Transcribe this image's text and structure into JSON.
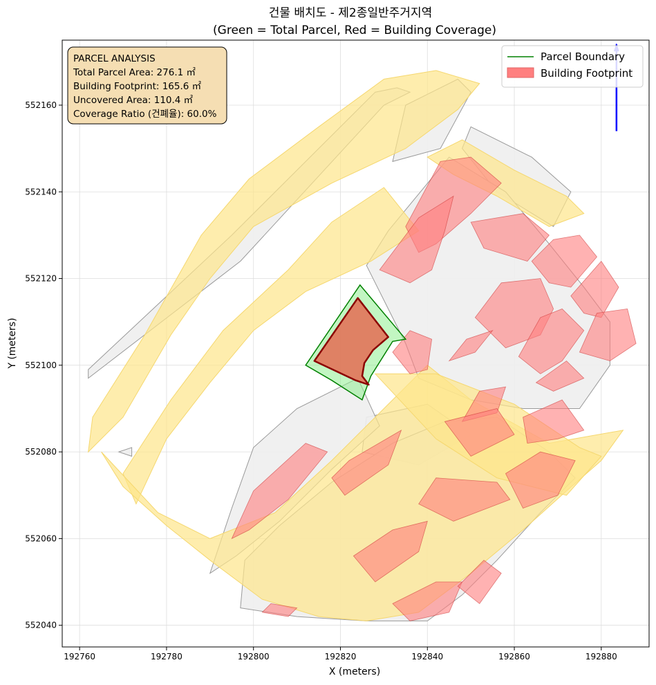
{
  "figure": {
    "title_line1": "건물 배치도 - 제2종일반주거지역",
    "title_line2": "(Green = Total Parcel, Red = Building Coverage)"
  },
  "chart_data": {
    "type": "map",
    "xlabel": "X (meters)",
    "ylabel": "Y (meters)",
    "xlim": [
      192756,
      192891
    ],
    "ylim": [
      552035,
      552175
    ],
    "grid": true,
    "legend_position": "top-right",
    "x_ticks": [
      192760,
      192780,
      192800,
      192820,
      192840,
      192860,
      192880
    ],
    "y_ticks": [
      552040,
      552060,
      552080,
      552100,
      552120,
      552140,
      552160
    ],
    "legend": [
      {
        "label": "Parcel Boundary",
        "kind": "line",
        "color": "#008000"
      },
      {
        "label": "Building Footprint",
        "kind": "patch",
        "color": "#ff7f7f"
      }
    ],
    "info_box": {
      "lines": [
        "PARCEL ANALYSIS",
        "Total Parcel Area: 276.1 ㎡",
        "Building Footprint: 165.6 ㎡",
        "Uncovered Area: 110.4 ㎡",
        "Coverage Ratio (건폐율): 60.0%"
      ]
    },
    "target_parcel": [
      [
        192812.0,
        552100.0
      ],
      [
        192824.5,
        552118.5
      ],
      [
        192835.0,
        552106.0
      ],
      [
        192832.0,
        552105.5
      ],
      [
        192827.0,
        552097.5
      ],
      [
        192825.0,
        552092.0
      ],
      [
        192818.0,
        552096.5
      ]
    ],
    "target_building": [
      [
        192814.0,
        552101.0
      ],
      [
        192824.0,
        552115.5
      ],
      [
        192831.0,
        552106.5
      ],
      [
        192827.5,
        552103.5
      ],
      [
        192825.5,
        552100.5
      ],
      [
        192825.0,
        552097.5
      ],
      [
        192826.5,
        552095.5
      ],
      [
        192823.5,
        552096.5
      ]
    ],
    "roads": [
      [
        [
          192763,
          552088
        ],
        [
          192775,
          552107
        ],
        [
          192788,
          552130
        ],
        [
          192799,
          552143
        ],
        [
          192815,
          552155
        ],
        [
          192830,
          552166
        ],
        [
          192842,
          552168
        ],
        [
          192852,
          552165
        ],
        [
          192847,
          552159
        ],
        [
          192835,
          552150
        ],
        [
          192818,
          552142
        ],
        [
          192800,
          552132
        ],
        [
          192790,
          552120
        ],
        [
          192781,
          552107
        ],
        [
          192770,
          552088
        ],
        [
          192762,
          552080
        ]
      ],
      [
        [
          192773,
          552068
        ],
        [
          192780,
          552083
        ],
        [
          192790,
          552096
        ],
        [
          192800,
          552108
        ],
        [
          192812,
          552117
        ],
        [
          192827,
          552124
        ],
        [
          192838,
          552131
        ],
        [
          192830,
          552141
        ],
        [
          192818,
          552133
        ],
        [
          192808,
          552122
        ],
        [
          192793,
          552108
        ],
        [
          192781,
          552092
        ],
        [
          192770,
          552075
        ]
      ],
      [
        [
          192765,
          552080
        ],
        [
          192770,
          552072
        ],
        [
          192780,
          552063
        ],
        [
          192790,
          552055
        ],
        [
          192802,
          552046
        ],
        [
          192815,
          552042
        ],
        [
          192826,
          552041
        ],
        [
          192838,
          552043
        ],
        [
          192850,
          552052
        ],
        [
          192862,
          552062
        ],
        [
          192872,
          552071
        ],
        [
          192880,
          552078
        ],
        [
          192885,
          552085
        ],
        [
          192868,
          552082
        ],
        [
          192850,
          552092
        ],
        [
          192840,
          552100
        ],
        [
          192830,
          552090
        ],
        [
          192818,
          552078
        ],
        [
          192805,
          552066
        ],
        [
          192790,
          552060
        ],
        [
          192778,
          552066
        ]
      ],
      [
        [
          192828,
          552098
        ],
        [
          192842,
          552098
        ],
        [
          192860,
          552091
        ],
        [
          192875,
          552081
        ],
        [
          192880,
          552079
        ],
        [
          192872,
          552070
        ],
        [
          192856,
          552074
        ],
        [
          192842,
          552083
        ]
      ],
      [
        [
          192840,
          552148
        ],
        [
          192848,
          552152
        ],
        [
          192860,
          552145
        ],
        [
          192872,
          552139
        ],
        [
          192876,
          552135
        ],
        [
          192868,
          552132
        ],
        [
          192856,
          552139
        ],
        [
          192846,
          552144
        ]
      ]
    ],
    "parcels": [
      [
        [
          192762,
          552097
        ],
        [
          192797,
          552124
        ],
        [
          192830,
          552160
        ],
        [
          192836,
          552163
        ],
        [
          192833,
          552164
        ],
        [
          192828,
          552163
        ],
        [
          192795,
          552130
        ],
        [
          192762,
          552099
        ]
      ],
      [
        [
          192835,
          552160
        ],
        [
          192847,
          552166
        ],
        [
          192850,
          552163
        ],
        [
          192843,
          552150
        ],
        [
          192832,
          552147
        ]
      ],
      [
        [
          192850,
          552155
        ],
        [
          192864,
          552148
        ],
        [
          192873,
          552140
        ],
        [
          192869,
          552132
        ],
        [
          192856,
          552140
        ],
        [
          192848,
          552150
        ]
      ],
      [
        [
          192831,
          552131
        ],
        [
          192845,
          552148
        ],
        [
          192858,
          552140
        ],
        [
          192868,
          552128
        ],
        [
          192876,
          552118
        ],
        [
          192882,
          552110
        ],
        [
          192882,
          552100
        ],
        [
          192875,
          552090
        ],
        [
          192862,
          552090
        ],
        [
          192850,
          552092
        ],
        [
          192838,
          552097
        ],
        [
          192835,
          552105
        ],
        [
          192830,
          552115
        ],
        [
          192826,
          552123
        ]
      ],
      [
        [
          192826,
          552088
        ],
        [
          192840,
          552091
        ],
        [
          192850,
          552084
        ],
        [
          192838,
          552077
        ],
        [
          192825,
          552080
        ]
      ],
      [
        [
          192797,
          552044
        ],
        [
          192810,
          552042
        ],
        [
          192826,
          552041
        ],
        [
          192840,
          552041
        ],
        [
          192848,
          552047
        ],
        [
          192856,
          552055
        ],
        [
          192866,
          552066
        ],
        [
          192874,
          552074
        ],
        [
          192868,
          552080
        ],
        [
          192856,
          552088
        ],
        [
          192844,
          552087
        ],
        [
          192832,
          552082
        ],
        [
          192818,
          552073
        ],
        [
          192806,
          552063
        ],
        [
          192798,
          552055
        ]
      ],
      [
        [
          192790,
          552052
        ],
        [
          192795,
          552067
        ],
        [
          192800,
          552081
        ],
        [
          192810,
          552090
        ],
        [
          192824,
          552097
        ],
        [
          192829,
          552086
        ],
        [
          192818,
          552076
        ],
        [
          192806,
          552064
        ],
        [
          192796,
          552056
        ]
      ],
      [
        [
          192769,
          552080
        ],
        [
          192772,
          552081
        ],
        [
          192772,
          552079
        ]
      ]
    ],
    "buildings": [
      [
        [
          192835,
          552132
        ],
        [
          192843,
          552147
        ],
        [
          192850,
          552148
        ],
        [
          192857,
          552142
        ],
        [
          192850,
          552135
        ],
        [
          192842,
          552128
        ],
        [
          192838,
          552126
        ]
      ],
      [
        [
          192829,
          552122
        ],
        [
          192838,
          552134
        ],
        [
          192846,
          552139
        ],
        [
          192844,
          552131
        ],
        [
          192841,
          552122
        ],
        [
          192836,
          552119
        ]
      ],
      [
        [
          192850,
          552133
        ],
        [
          192862,
          552135
        ],
        [
          192868,
          552130
        ],
        [
          192863,
          552124
        ],
        [
          192853,
          552127
        ]
      ],
      [
        [
          192864,
          552124
        ],
        [
          192869,
          552129
        ],
        [
          192875,
          552130
        ],
        [
          192879,
          552125
        ],
        [
          192873,
          552118
        ],
        [
          192868,
          552119
        ]
      ],
      [
        [
          192873,
          552116
        ],
        [
          192880,
          552124
        ],
        [
          192884,
          552118
        ],
        [
          192880,
          552111
        ],
        [
          192876,
          552112
        ]
      ],
      [
        [
          192851,
          552111
        ],
        [
          192857,
          552119
        ],
        [
          192866,
          552120
        ],
        [
          192869,
          552113
        ],
        [
          192866,
          552107
        ],
        [
          192858,
          552104
        ]
      ],
      [
        [
          192861,
          552102
        ],
        [
          192866,
          552111
        ],
        [
          192871,
          552113
        ],
        [
          192876,
          552108
        ],
        [
          192871,
          552101
        ],
        [
          192866,
          552098
        ]
      ],
      [
        [
          192875,
          552103
        ],
        [
          192879,
          552112
        ],
        [
          192886,
          552113
        ],
        [
          192888,
          552105
        ],
        [
          192882,
          552101
        ]
      ],
      [
        [
          192848,
          552087
        ],
        [
          192852,
          552094
        ],
        [
          192858,
          552095
        ],
        [
          192856,
          552089
        ]
      ],
      [
        [
          192832,
          552103
        ],
        [
          192836,
          552108
        ],
        [
          192841,
          552106
        ],
        [
          192840,
          552099
        ],
        [
          192836,
          552098
        ]
      ],
      [
        [
          192818,
          552074
        ],
        [
          192822,
          552078
        ],
        [
          192834,
          552085
        ],
        [
          192831,
          552077
        ],
        [
          192821,
          552070
        ]
      ],
      [
        [
          192838,
          552068
        ],
        [
          192842,
          552074
        ],
        [
          192856,
          552073
        ],
        [
          192859,
          552069
        ],
        [
          192846,
          552064
        ]
      ],
      [
        [
          192858,
          552075
        ],
        [
          192866,
          552080
        ],
        [
          192874,
          552078
        ],
        [
          192870,
          552070
        ],
        [
          192862,
          552067
        ]
      ],
      [
        [
          192844,
          552087
        ],
        [
          192856,
          552090
        ],
        [
          192860,
          552084
        ],
        [
          192850,
          552079
        ]
      ],
      [
        [
          192862,
          552088
        ],
        [
          192871,
          552092
        ],
        [
          192876,
          552085
        ],
        [
          192870,
          552083
        ],
        [
          192863,
          552082
        ]
      ],
      [
        [
          192823,
          552056
        ],
        [
          192832,
          552062
        ],
        [
          192840,
          552064
        ],
        [
          192838,
          552057
        ],
        [
          192828,
          552050
        ]
      ],
      [
        [
          192832,
          552045
        ],
        [
          192842,
          552050
        ],
        [
          192848,
          552050
        ],
        [
          192845,
          552043
        ],
        [
          192836,
          552041
        ]
      ],
      [
        [
          192847,
          552049
        ],
        [
          192853,
          552055
        ],
        [
          192857,
          552052
        ],
        [
          192852,
          552045
        ]
      ],
      [
        [
          192804,
          552045
        ],
        [
          192810,
          552044
        ],
        [
          192808,
          552042
        ],
        [
          192802,
          552043
        ]
      ],
      [
        [
          192795,
          552060
        ],
        [
          192800,
          552071
        ],
        [
          192812,
          552082
        ],
        [
          192817,
          552080
        ],
        [
          192808,
          552069
        ],
        [
          192799,
          552062
        ]
      ],
      [
        [
          192845,
          552101
        ],
        [
          192849,
          552106
        ],
        [
          192855,
          552108
        ],
        [
          192851,
          552103
        ]
      ],
      [
        [
          192865,
          552096
        ],
        [
          192872,
          552101
        ],
        [
          192876,
          552097
        ],
        [
          192869,
          552094
        ]
      ]
    ],
    "north_arrow": {
      "x": 192883.5,
      "y_from": 552154,
      "y_to": 552174
    }
  },
  "colors": {
    "parcel_edge": "#008000",
    "parcel_fill": "#90ee90",
    "building_face": "#ff7f7f",
    "building_edge": "#cc3333",
    "target_building": "#e07a5f",
    "target_building_edge": "#8b0000",
    "road_fill": "#fde68a",
    "road_edge": "#f5d76e",
    "lot_fill": "#eeeeee",
    "lot_edge": "#999999",
    "info_box_fill": "#f5deb3",
    "north_arrow": "#0000ff"
  }
}
